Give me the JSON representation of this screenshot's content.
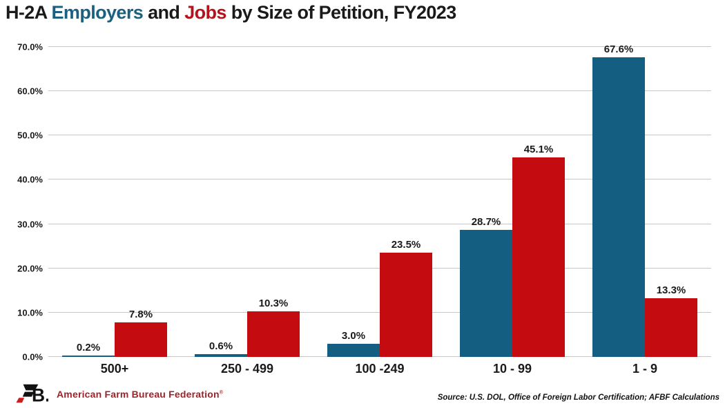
{
  "title": {
    "parts": [
      {
        "text": "H-2A ",
        "color": "#1a1a1a"
      },
      {
        "text": "Employers",
        "color": "#1c607f"
      },
      {
        "text": " and ",
        "color": "#1a1a1a"
      },
      {
        "text": "Jobs",
        "color": "#b5121b"
      },
      {
        "text": " by Size of Petition, FY2023",
        "color": "#1a1a1a"
      }
    ]
  },
  "chart_data": {
    "type": "bar",
    "title": "H-2A Employers and Jobs by Size of Petition, FY2023",
    "categories": [
      "500+",
      "250 - 499",
      "100 -249",
      "10 - 99",
      "1 - 9"
    ],
    "series": [
      {
        "name": "Employers",
        "color": "#145e82",
        "values": [
          0.2,
          0.6,
          3.0,
          28.7,
          67.6
        ],
        "labels": [
          "0.2%",
          "0.6%",
          "3.0%",
          "28.7%",
          "67.6%"
        ]
      },
      {
        "name": "Jobs",
        "color": "#c30b10",
        "values": [
          7.8,
          10.3,
          23.5,
          45.1,
          13.3
        ],
        "labels": [
          "7.8%",
          "10.3%",
          "23.5%",
          "45.1%",
          "13.3%"
        ]
      }
    ],
    "ylim": [
      0,
      70
    ],
    "yticks": [
      {
        "value": 0,
        "label": "0.0%"
      },
      {
        "value": 10,
        "label": "10.0%"
      },
      {
        "value": 20,
        "label": "20.0%"
      },
      {
        "value": 30,
        "label": "30.0%"
      },
      {
        "value": 40,
        "label": "40.0%"
      },
      {
        "value": 50,
        "label": "50.0%"
      },
      {
        "value": 60,
        "label": "60.0%"
      },
      {
        "value": 70,
        "label": "70.0%"
      }
    ],
    "grid": true,
    "legend": "none",
    "xlabel": "",
    "ylabel": ""
  },
  "footer": {
    "logo_text": "FB.",
    "brand": "American Farm Bureau Federation",
    "registered_mark": "®",
    "source": "Source: U.S. DOL, Office of Foreign Labor Certification; AFBF Calculations"
  },
  "colors": {
    "bar_blue": "#145e82",
    "bar_red": "#c30b10",
    "title_blue": "#1c607f",
    "title_red": "#b5121b",
    "brand_red": "#9d2329",
    "gridline": "#c6c6c6",
    "text": "#1a1a1a"
  }
}
